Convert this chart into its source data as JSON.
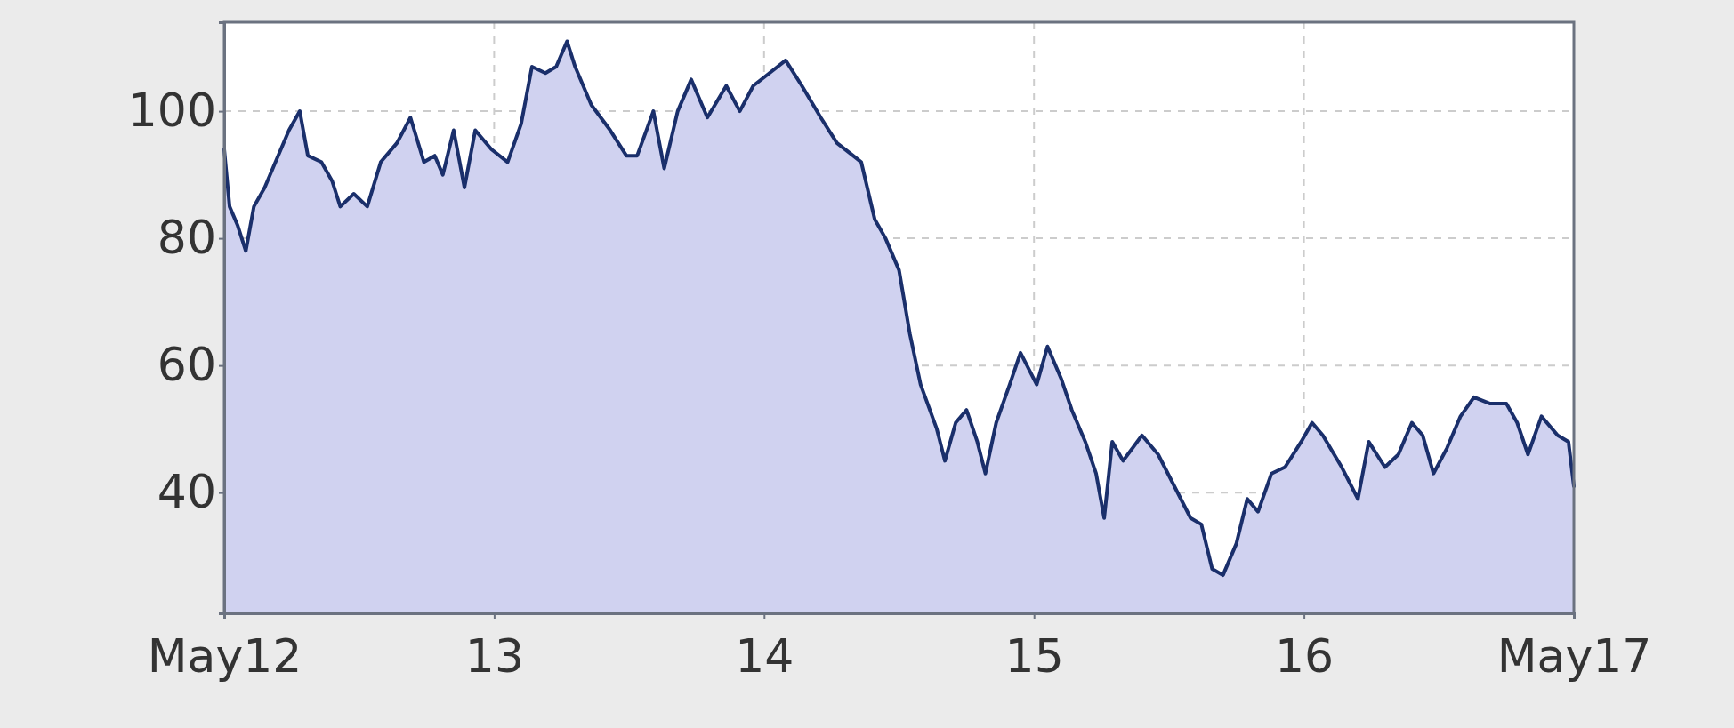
{
  "chart_data": {
    "type": "area",
    "xlim": [
      12,
      17
    ],
    "ylim": [
      21,
      114
    ],
    "xticks": [
      {
        "value": 12,
        "label": "May12"
      },
      13,
      14,
      15,
      16,
      {
        "value": 17,
        "label": "May17"
      }
    ],
    "yticks": [
      40,
      60,
      80,
      100
    ],
    "grid": true,
    "line_style": "dashed",
    "series": [
      {
        "color": "#1a2f6b",
        "x": [
          12,
          12.02,
          12.05,
          12.08,
          12.11,
          12.15,
          12.19,
          12.24,
          12.28,
          12.31,
          12.36,
          12.4,
          12.43,
          12.48,
          12.53,
          12.58,
          12.64,
          12.69,
          12.74,
          12.78,
          12.81,
          12.85,
          12.89,
          12.93,
          12.99,
          13.05,
          13.1,
          13.14,
          13.19,
          13.23,
          13.27,
          13.3,
          13.36,
          13.43,
          13.49,
          13.53,
          13.59,
          13.63,
          13.68,
          13.73,
          13.79,
          13.86,
          13.91,
          13.96,
          14.02,
          14.08,
          14.14,
          14.21,
          14.27,
          14.33,
          14.36,
          14.41,
          14.45,
          14.5,
          14.54,
          14.58,
          14.64,
          14.67,
          14.71,
          14.75,
          14.79,
          14.82,
          14.86,
          14.91,
          14.95,
          15.01,
          15.05,
          15.1,
          15.14,
          15.19,
          15.23,
          15.26,
          15.29,
          15.33,
          15.4,
          15.46,
          15.52,
          15.58,
          15.62,
          15.66,
          15.7,
          15.75,
          15.79,
          15.83,
          15.88,
          15.93,
          15.99,
          16.03,
          16.07,
          16.14,
          16.2,
          16.24,
          16.3,
          16.35,
          16.4,
          16.44,
          16.48,
          16.53,
          16.58,
          16.63,
          16.69,
          16.75,
          16.79,
          16.83,
          16.88,
          16.94,
          16.98,
          17
        ],
        "values": [
          94,
          85,
          82,
          78,
          85,
          88,
          92,
          97,
          100,
          93,
          92,
          89,
          85,
          87,
          85,
          92,
          95,
          99,
          92,
          93,
          90,
          97,
          88,
          97,
          94,
          92,
          98,
          107,
          106,
          107,
          111,
          107,
          101,
          97,
          93,
          93,
          100,
          91,
          100,
          105,
          99,
          104,
          100,
          104,
          106,
          108,
          104,
          99,
          95,
          93,
          92,
          83,
          80,
          75,
          65,
          57,
          50,
          45,
          51,
          53,
          48,
          43,
          51,
          57,
          62,
          57,
          63,
          58,
          53,
          48,
          43,
          36,
          48,
          45,
          49,
          46,
          41,
          36,
          35,
          28,
          27,
          32,
          39,
          37,
          43,
          44,
          48,
          51,
          49,
          44,
          39,
          48,
          44,
          46,
          51,
          49,
          43,
          47,
          52,
          55,
          54,
          54,
          51,
          46,
          52,
          49,
          48,
          41
        ]
      }
    ]
  }
}
